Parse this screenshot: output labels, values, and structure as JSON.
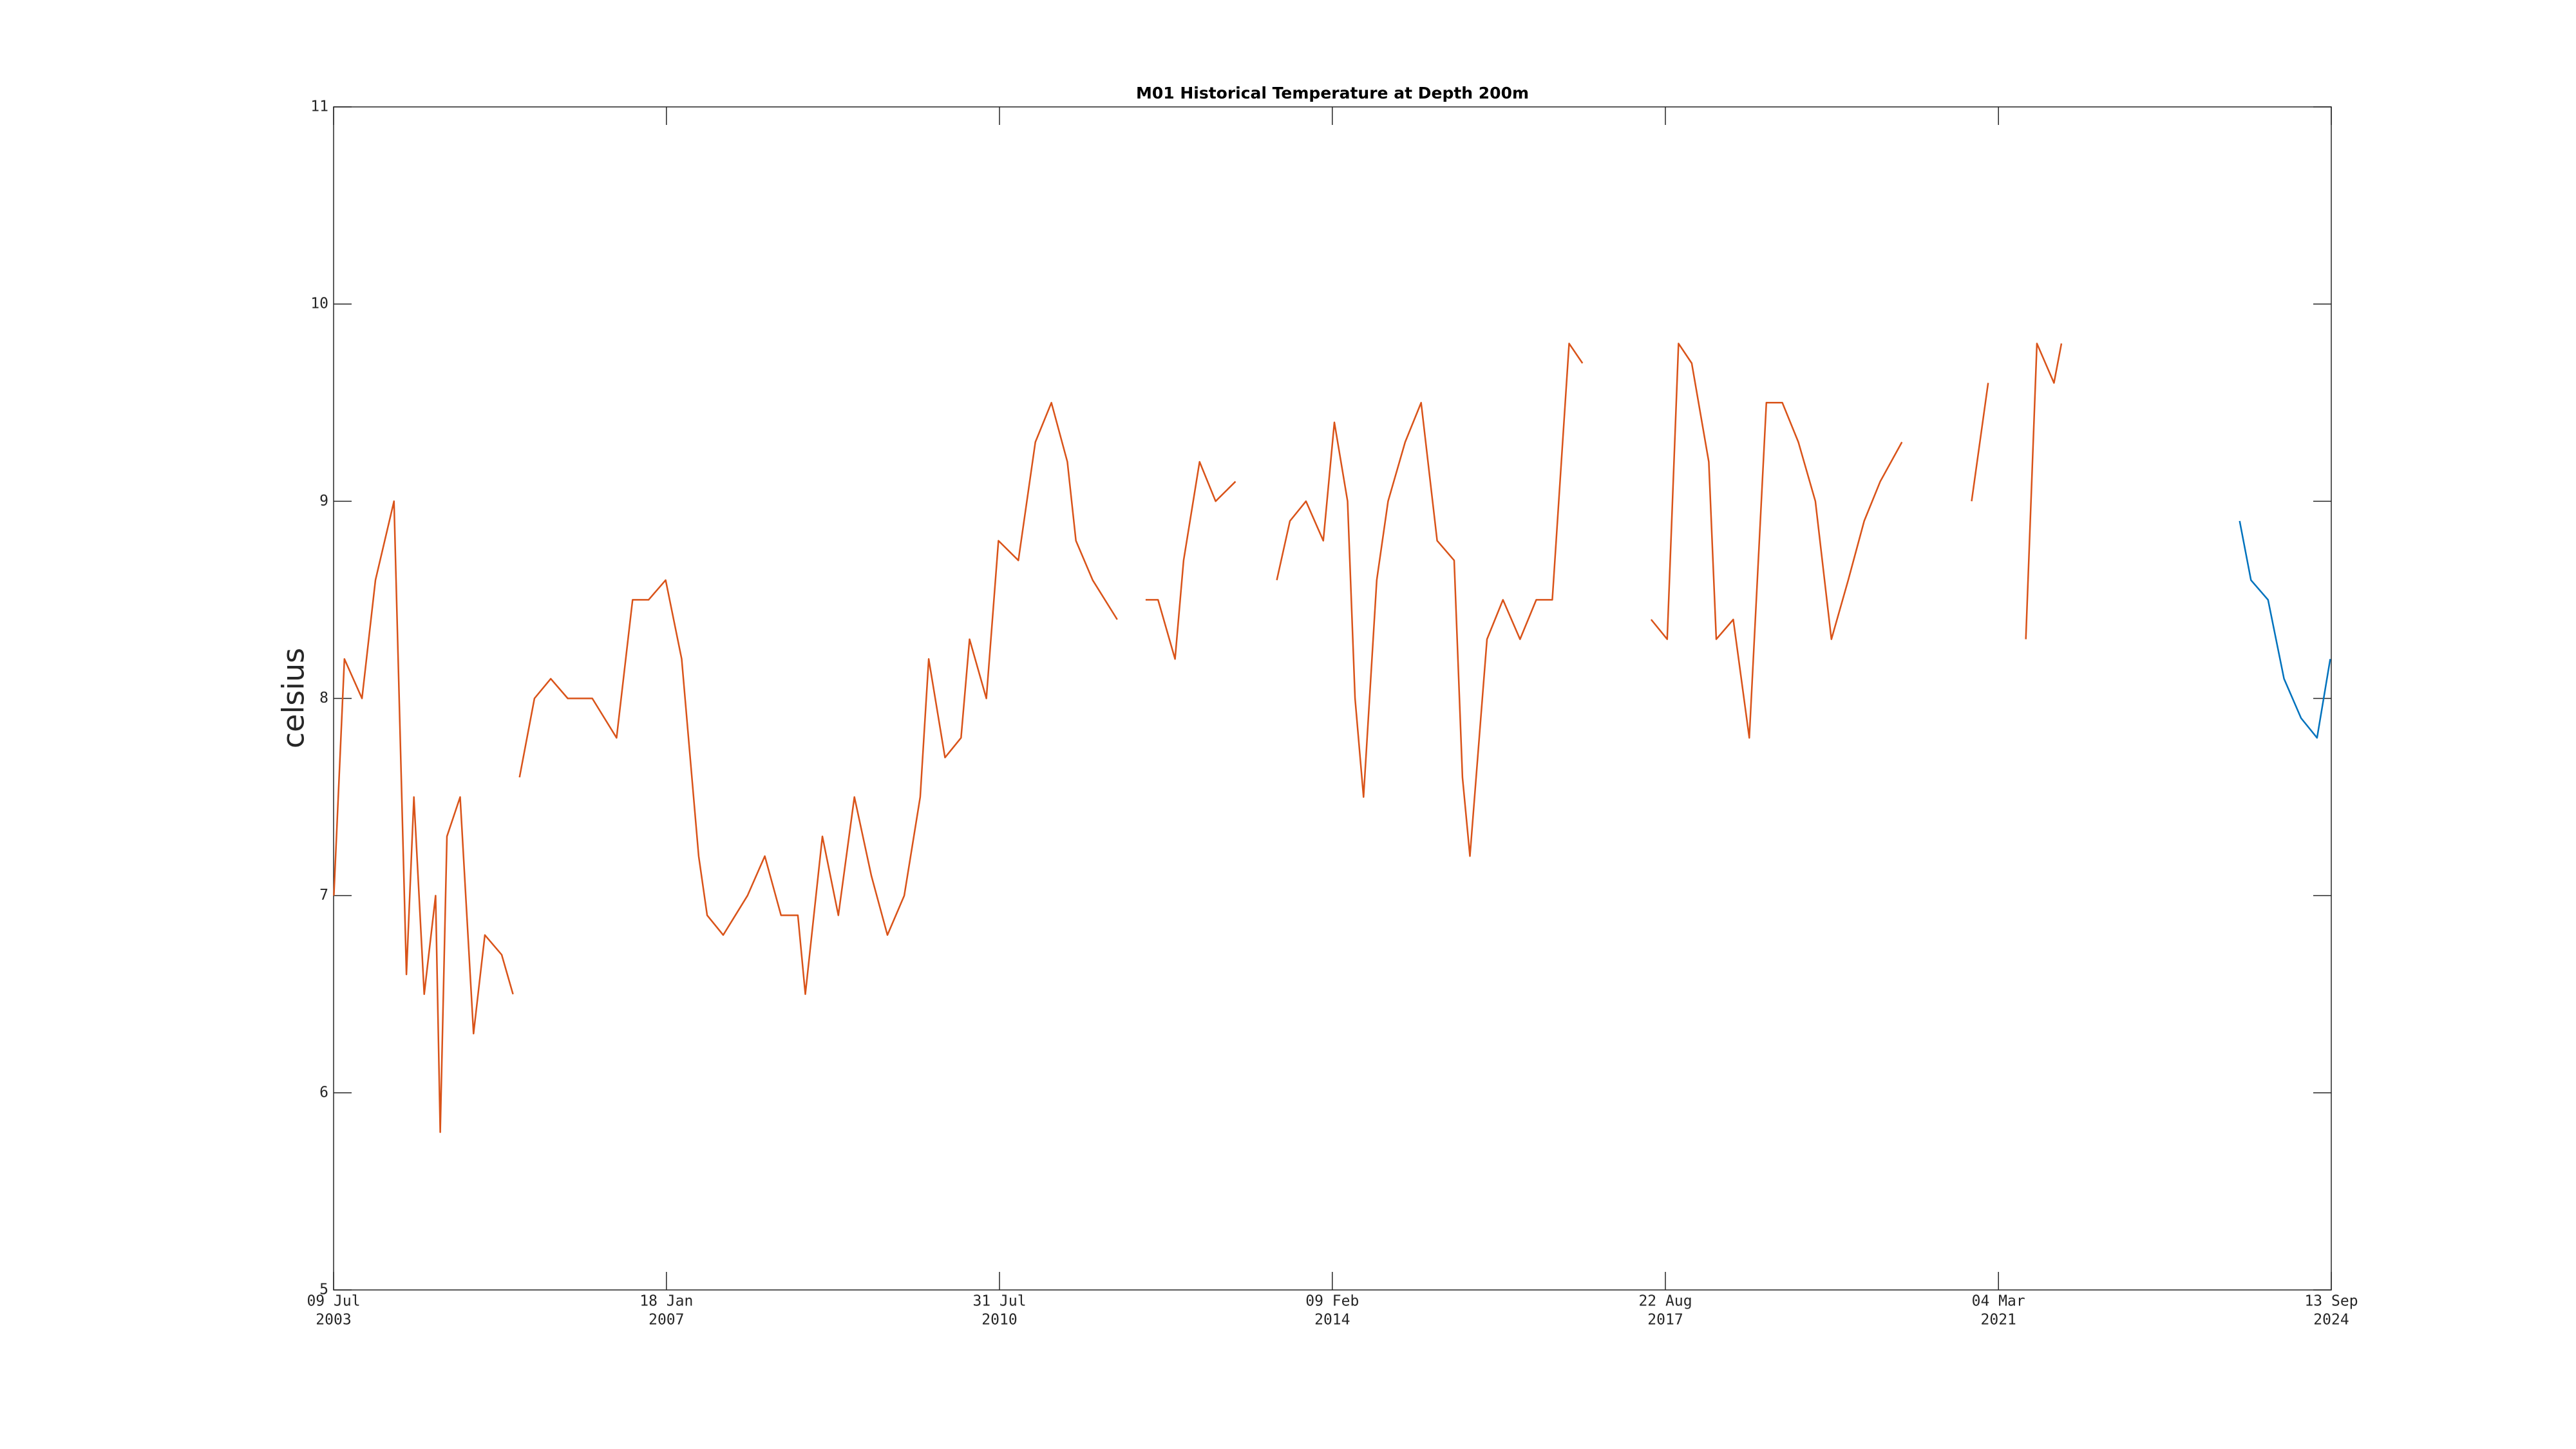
{
  "chart_data": {
    "type": "line",
    "title": "M01 Historical Temperature at Depth 200m",
    "y_label": "celsius",
    "x": [
      "2003-07-10",
      "2003-08-20",
      "2003-10-27",
      "2003-12-18",
      "2004-02-28",
      "2004-04-16",
      "2004-05-15",
      "2004-06-24",
      "2004-08-07",
      "2004-08-25",
      "2004-09-20",
      "2004-11-10",
      "2005-01-01",
      "2005-02-14",
      "2005-04-20",
      "2005-06-03",
      "2005-06-18",
      "2005-06-28",
      "2005-08-25",
      "2005-10-27",
      "2006-01-01",
      "2006-04-06",
      "2006-07-09",
      "2006-09-09",
      "2006-11-10",
      "2007-01-15",
      "2007-03-18",
      "2007-05-23",
      "2007-06-25",
      "2007-08-26",
      "2007-11-28",
      "2008-02-03",
      "2008-04-06",
      "2008-06-10",
      "2008-07-09",
      "2008-09-13",
      "2008-11-14",
      "2009-01-15",
      "2009-03-22",
      "2009-05-23",
      "2009-07-27",
      "2009-09-27",
      "2009-10-30",
      "2010-01-01",
      "2010-03-04",
      "2010-04-06",
      "2010-06-10",
      "2010-07-27",
      "2010-10-12",
      "2010-12-17",
      "2011-02-17",
      "2011-04-20",
      "2011-05-23",
      "2011-07-27",
      "2011-10-30",
      "2011-12-15",
      "2012-02-17",
      "2012-04-05",
      "2012-06-10",
      "2012-07-13",
      "2012-09-13",
      "2012-11-14",
      "2013-01-30",
      "2013-04-15",
      "2013-07-09",
      "2013-08-29",
      "2013-10-30",
      "2014-01-05",
      "2014-02-17",
      "2014-04-09",
      "2014-05-08",
      "2014-06-10",
      "2014-07-31",
      "2014-09-13",
      "2014-11-18",
      "2015-01-19",
      "2015-03-22",
      "2015-05-27",
      "2015-06-28",
      "2015-07-27",
      "2015-10-01",
      "2015-12-02",
      "2016-02-06",
      "2016-04-09",
      "2016-06-10",
      "2016-08-14",
      "2016-10-05",
      "2017-01-15",
      "2017-06-28",
      "2017-08-29",
      "2017-10-12",
      "2017-12-02",
      "2018-02-06",
      "2018-03-07",
      "2018-05-12",
      "2018-07-13",
      "2018-09-17",
      "2018-11-18",
      "2019-01-19",
      "2019-03-26",
      "2019-05-27",
      "2019-07-31",
      "2019-10-01",
      "2019-12-02",
      "2020-02-24",
      "2020-06-15",
      "2020-11-20",
      "2021-01-23",
      "2021-03-15",
      "2021-06-18",
      "2021-07-31",
      "2021-10-05",
      "2021-11-03",
      "2023-09-24",
      "2023-11-07",
      "2024-01-12",
      "2024-03-14",
      "2024-05-19",
      "2024-07-20",
      "2024-09-09"
    ],
    "series": [
      {
        "color": "#d95319",
        "values": [
          7.0,
          8.2,
          8.0,
          8.6,
          9.0,
          6.6,
          7.5,
          6.5,
          7.0,
          5.8,
          7.3,
          7.5,
          6.3,
          6.8,
          6.7,
          6.5,
          null,
          7.6,
          8.0,
          8.1,
          8.0,
          8.0,
          7.8,
          8.5,
          8.5,
          8.6,
          8.2,
          7.2,
          6.9,
          6.8,
          7.0,
          7.2,
          6.9,
          6.9,
          6.5,
          7.3,
          6.9,
          7.5,
          7.1,
          6.8,
          7.0,
          7.5,
          8.2,
          7.7,
          7.8,
          8.3,
          8.0,
          8.8,
          8.7,
          9.3,
          9.5,
          9.2,
          8.8,
          8.6,
          8.4,
          null,
          8.5,
          8.5,
          8.2,
          8.7,
          9.2,
          9.0,
          9.1,
          null,
          8.6,
          8.9,
          9.0,
          8.8,
          9.4,
          9.0,
          8.0,
          7.5,
          8.6,
          9.0,
          9.3,
          9.5,
          8.8,
          8.7,
          7.6,
          7.2,
          8.3,
          8.5,
          8.3,
          8.5,
          8.5,
          9.8,
          9.7,
          null,
          8.4,
          8.3,
          9.8,
          9.7,
          9.2,
          8.3,
          8.4,
          7.8,
          9.5,
          9.5,
          9.3,
          9.0,
          8.3,
          8.6,
          8.9,
          9.1,
          9.3,
          null,
          9.0,
          9.6,
          null,
          8.3,
          9.8,
          9.6,
          9.8,
          null,
          null,
          null,
          null,
          null,
          null,
          null
        ]
      },
      {
        "color": "#0072bd",
        "values": [
          null,
          null,
          null,
          null,
          null,
          null,
          null,
          null,
          null,
          null,
          null,
          null,
          null,
          null,
          null,
          null,
          null,
          null,
          null,
          null,
          null,
          null,
          null,
          null,
          null,
          null,
          null,
          null,
          null,
          null,
          null,
          null,
          null,
          null,
          null,
          null,
          null,
          null,
          null,
          null,
          null,
          null,
          null,
          null,
          null,
          null,
          null,
          null,
          null,
          null,
          null,
          null,
          null,
          null,
          null,
          null,
          null,
          null,
          null,
          null,
          null,
          null,
          null,
          null,
          null,
          null,
          null,
          null,
          null,
          null,
          null,
          null,
          null,
          null,
          null,
          null,
          null,
          null,
          null,
          null,
          null,
          null,
          null,
          null,
          null,
          null,
          null,
          null,
          null,
          null,
          null,
          null,
          null,
          null,
          null,
          null,
          null,
          null,
          null,
          null,
          null,
          null,
          null,
          null,
          null,
          null,
          null,
          null,
          null,
          null,
          null,
          null,
          null,
          8.9,
          8.6,
          8.5,
          8.1,
          7.9,
          7.8,
          8.2
        ]
      }
    ],
    "xlim": [
      "2003-07-09",
      "2024-09-13"
    ],
    "xticks": [
      {
        "value": "2003-07-09",
        "label": [
          "09 Jul",
          "2003"
        ]
      },
      {
        "value": "2007-01-18",
        "label": [
          "18 Jan",
          "2007"
        ]
      },
      {
        "value": "2010-07-31",
        "label": [
          "31 Jul",
          "2010"
        ]
      },
      {
        "value": "2014-02-09",
        "label": [
          "09 Feb",
          "2014"
        ]
      },
      {
        "value": "2017-08-22",
        "label": [
          "22 Aug",
          "2017"
        ]
      },
      {
        "value": "2021-03-04",
        "label": [
          "04 Mar",
          "2021"
        ]
      },
      {
        "value": "2024-09-13",
        "label": [
          "13 Sep",
          "2024"
        ]
      }
    ],
    "ylim": [
      5,
      11
    ],
    "yticks": [
      5,
      6,
      7,
      8,
      9,
      10,
      11
    ],
    "grid": false
  }
}
